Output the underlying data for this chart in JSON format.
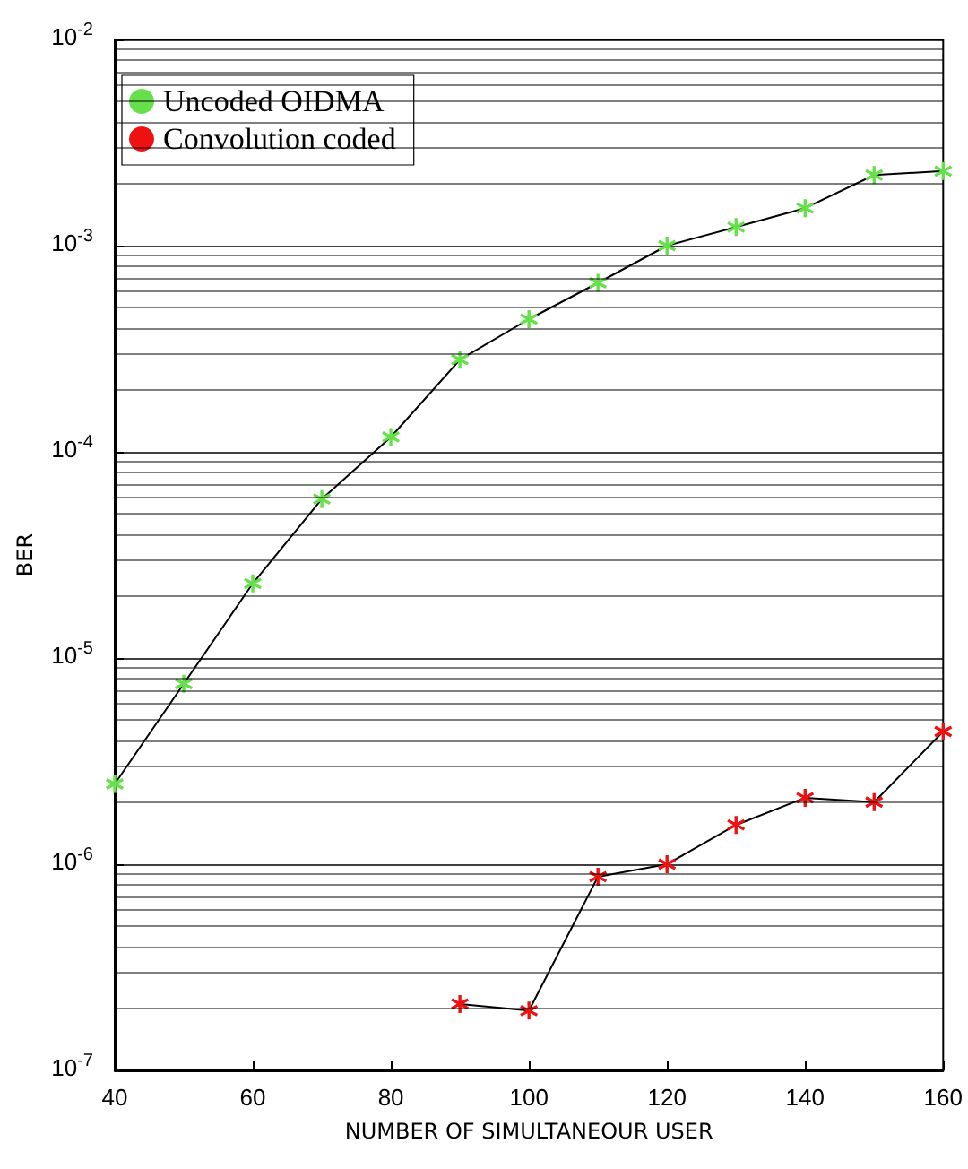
{
  "chart_data": {
    "type": "line",
    "xlabel": "NUMBER OF SIMULTANEOUR USER",
    "ylabel": "BER",
    "x": [
      40,
      50,
      60,
      70,
      80,
      90,
      100,
      110,
      120,
      130,
      140,
      150,
      160
    ],
    "series": [
      {
        "name": "Uncoded OIDMA",
        "color": "#66e04a",
        "values": [
          2.45e-06,
          7.5e-06,
          2.3e-05,
          5.9e-05,
          0.000118,
          0.00028,
          0.00044,
          0.00066,
          0.001,
          0.00123,
          0.00152,
          0.0022,
          0.0023
        ]
      },
      {
        "name": "Convolution coded",
        "color": "#ee1111",
        "values": [
          null,
          null,
          null,
          null,
          null,
          2.1e-07,
          1.95e-07,
          8.7e-07,
          1e-06,
          1.55e-06,
          2.1e-06,
          2e-06,
          4.4e-06
        ]
      }
    ],
    "xlim": [
      40,
      160
    ],
    "xticks": [
      40,
      60,
      80,
      100,
      120,
      140,
      160
    ],
    "ylim": [
      1e-07,
      0.01
    ],
    "yticks": [
      {
        "value": 1e-07,
        "label": "10$^{-7}$"
      },
      {
        "value": 1e-06,
        "label": "10$^{-6}$"
      },
      {
        "value": 1e-05,
        "label": "10$^{-5}$"
      },
      {
        "value": 0.0001,
        "label": "10$^{-4}$"
      },
      {
        "value": 0.001,
        "label": "10$^{-3}$"
      },
      {
        "value": 0.01,
        "label": "10$^{-2}$"
      }
    ],
    "log": "y",
    "grid": "y",
    "legend": "top left",
    "marker": "cross",
    "line_style": "solid"
  }
}
